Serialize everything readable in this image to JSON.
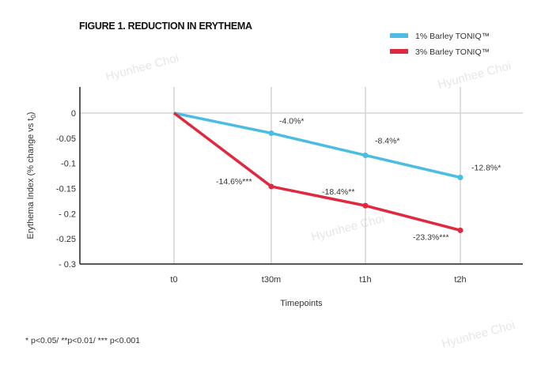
{
  "chart_data": {
    "type": "line",
    "title": "FIGURE 1. REDUCTION IN ERYTHEMA",
    "xlabel": "Timepoints",
    "ylabel": "Erythema Index (% change vs t",
    "ylabel_subscript": "0",
    "ylabel_close": ")",
    "categories": [
      "t0",
      "t30m",
      "t1h",
      "t2h"
    ],
    "ylim": [
      -0.3,
      0
    ],
    "yticks": [
      0,
      -0.05,
      -0.1,
      -0.15,
      -0.2,
      -0.25,
      -0.3
    ],
    "ytick_labels": [
      "0",
      "-0.05",
      "-0.1",
      "-0.15",
      "- 0.2",
      "-0.25",
      "- 0.3"
    ],
    "grid": "vertical at categories, horizontal at 0",
    "legend_position": "top-right",
    "series": [
      {
        "name": "1% Barley TONIQ™",
        "color": "#4bbde3",
        "values": [
          0,
          -0.04,
          -0.084,
          -0.128
        ],
        "labels": [
          "",
          "-4.0%*",
          "-8.4%*",
          "-12.8%*"
        ]
      },
      {
        "name": "3% Barley TONIQ™",
        "color": "#e0283f",
        "values": [
          0,
          -0.146,
          -0.184,
          -0.233
        ],
        "labels": [
          "",
          "-14.6%***",
          "-18.4%**",
          "-23.3%***"
        ]
      }
    ],
    "footnote": "* p<0.05/ **p<0.01/ *** p<0.001"
  },
  "watermark": "Hyunhee Choi"
}
